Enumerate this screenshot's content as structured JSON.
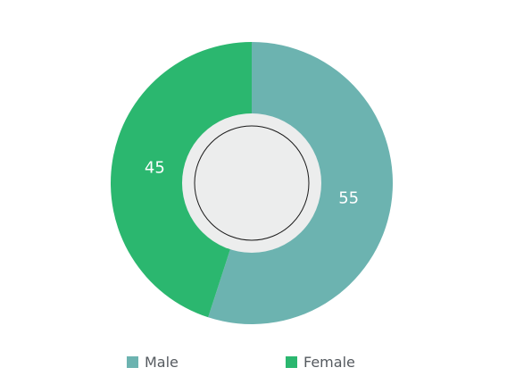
{
  "chart_data": {
    "type": "pie",
    "variant": "donut",
    "categories": [
      "Male",
      "Female"
    ],
    "values": [
      55,
      45
    ],
    "data_labels": [
      "55",
      "45"
    ],
    "legend": [
      "Male",
      "Female"
    ],
    "legend_position": "bottom",
    "colors": {
      "Male": "#6cb3b0",
      "Female": "#2bb76f",
      "center_ring": "#eceded",
      "center_outline": "#1a1a1a"
    }
  }
}
